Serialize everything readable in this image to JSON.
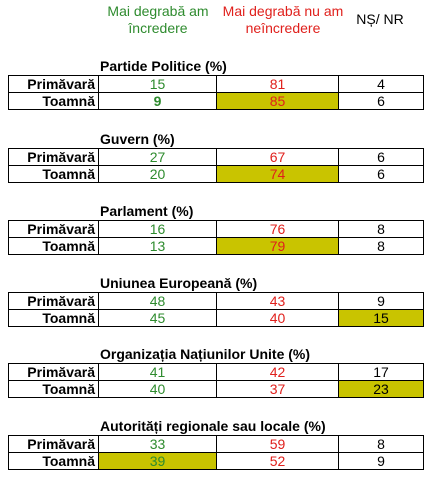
{
  "headers": {
    "trust": "Mai degrabă am încredere",
    "distrust": "Mai degrabă nu am neîncredere",
    "nsnr": "NȘ/ NR"
  },
  "colors": {
    "trust": "#2e8b2e",
    "distrust": "#e0201c",
    "highlight": "#c9c400"
  },
  "sections": [
    {
      "title": "Partide Politice (%)",
      "rows": [
        {
          "label": "Primăvară",
          "trust": "15",
          "distrust": "81",
          "nsnr": "4"
        },
        {
          "label": "Toamnă",
          "trust": "9",
          "distrust": "85",
          "nsnr": "6"
        }
      ]
    },
    {
      "title": "Guvern (%)",
      "rows": [
        {
          "label": "Primăvară",
          "trust": "27",
          "distrust": "67",
          "nsnr": "6"
        },
        {
          "label": "Toamnă",
          "trust": "20",
          "distrust": "74",
          "nsnr": "6"
        }
      ]
    },
    {
      "title": "Parlament (%)",
      "rows": [
        {
          "label": "Primăvară",
          "trust": "16",
          "distrust": "76",
          "nsnr": "8"
        },
        {
          "label": "Toamnă",
          "trust": "13",
          "distrust": "79",
          "nsnr": "8"
        }
      ]
    },
    {
      "title": "Uniunea Europeană  (%)",
      "rows": [
        {
          "label": "Primăvară",
          "trust": "48",
          "distrust": "43",
          "nsnr": "9"
        },
        {
          "label": "Toamnă",
          "trust": "45",
          "distrust": "40",
          "nsnr": "15"
        }
      ]
    },
    {
      "title": "Organizația Națiunilor Unite (%)",
      "rows": [
        {
          "label": "Primăvară",
          "trust": "41",
          "distrust": "42",
          "nsnr": "17"
        },
        {
          "label": "Toamnă",
          "trust": "40",
          "distrust": "37",
          "nsnr": "23"
        }
      ]
    },
    {
      "title": "Autorități regionale sau locale  (%)",
      "rows": [
        {
          "label": "Primăvară",
          "trust": "33",
          "distrust": "59",
          "nsnr": "8"
        },
        {
          "label": "Toamnă",
          "trust": "39",
          "distrust": "52",
          "nsnr": "9"
        }
      ]
    }
  ]
}
